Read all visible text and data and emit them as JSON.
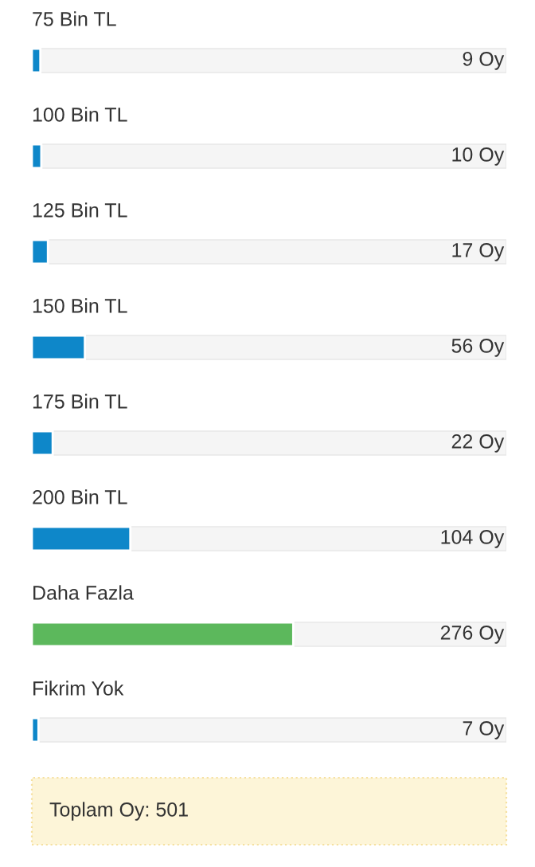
{
  "chart_data": {
    "type": "bar",
    "orientation": "horizontal",
    "categories": [
      "75 Bin TL",
      "100 Bin TL",
      "125 Bin TL",
      "150 Bin TL",
      "175 Bin TL",
      "200 Bin TL",
      "Daha Fazla",
      "Fikrim Yok"
    ],
    "values": [
      9,
      10,
      17,
      56,
      22,
      104,
      276,
      7
    ],
    "colors": [
      "#0e87c9",
      "#0e87c9",
      "#0e87c9",
      "#0e87c9",
      "#0e87c9",
      "#0e87c9",
      "#5cb85c",
      "#0e87c9"
    ],
    "value_labels": [
      "9 Oy",
      "10 Oy",
      "17 Oy",
      "56 Oy",
      "22 Oy",
      "104 Oy",
      "276 Oy",
      "7 Oy"
    ],
    "xlim": [
      0,
      501
    ],
    "annotations": [
      "Toplam Oy: 501"
    ]
  }
}
